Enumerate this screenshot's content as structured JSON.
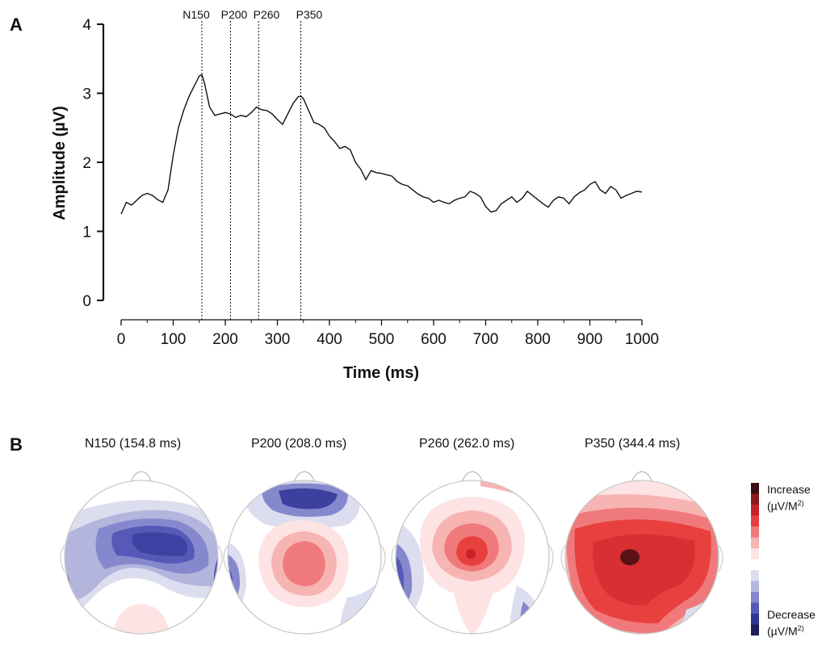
{
  "panels": {
    "a": "A",
    "b": "B"
  },
  "chart_data": {
    "type": "line",
    "xlabel": "Time (ms)",
    "ylabel": "Amplitude (µV)",
    "xlim": [
      0,
      1000
    ],
    "ylim": [
      0,
      4
    ],
    "xticks": [
      0,
      100,
      200,
      300,
      400,
      500,
      600,
      700,
      800,
      900,
      1000
    ],
    "yticks": [
      0,
      1,
      2,
      3,
      4
    ],
    "markers": [
      {
        "label": "N150",
        "x": 155
      },
      {
        "label": "P200",
        "x": 210
      },
      {
        "label": "P260",
        "x": 264
      },
      {
        "label": "P350",
        "x": 345
      }
    ],
    "x": [
      0,
      10,
      20,
      30,
      40,
      50,
      60,
      70,
      80,
      90,
      100,
      110,
      120,
      130,
      140,
      150,
      155,
      160,
      170,
      180,
      190,
      200,
      210,
      220,
      230,
      240,
      250,
      260,
      270,
      280,
      290,
      300,
      310,
      320,
      330,
      340,
      345,
      350,
      360,
      370,
      380,
      390,
      400,
      410,
      420,
      430,
      440,
      450,
      460,
      470,
      480,
      490,
      500,
      510,
      520,
      530,
      540,
      550,
      560,
      570,
      580,
      590,
      600,
      610,
      620,
      630,
      640,
      650,
      660,
      670,
      680,
      690,
      700,
      710,
      720,
      730,
      740,
      750,
      760,
      770,
      780,
      790,
      800,
      810,
      820,
      830,
      840,
      850,
      860,
      870,
      880,
      890,
      900,
      910,
      920,
      930,
      940,
      950,
      960,
      970,
      980,
      990,
      1000
    ],
    "y": [
      1.25,
      1.42,
      1.38,
      1.45,
      1.52,
      1.55,
      1.52,
      1.46,
      1.42,
      1.6,
      2.1,
      2.5,
      2.75,
      2.95,
      3.1,
      3.25,
      3.27,
      3.15,
      2.8,
      2.68,
      2.7,
      2.72,
      2.7,
      2.65,
      2.68,
      2.66,
      2.72,
      2.8,
      2.76,
      2.75,
      2.7,
      2.62,
      2.55,
      2.7,
      2.85,
      2.95,
      2.96,
      2.92,
      2.75,
      2.58,
      2.55,
      2.5,
      2.38,
      2.3,
      2.2,
      2.23,
      2.18,
      2.0,
      1.9,
      1.75,
      1.88,
      1.85,
      1.84,
      1.82,
      1.8,
      1.72,
      1.68,
      1.66,
      1.6,
      1.54,
      1.5,
      1.48,
      1.42,
      1.45,
      1.42,
      1.4,
      1.45,
      1.48,
      1.5,
      1.58,
      1.55,
      1.5,
      1.36,
      1.28,
      1.3,
      1.4,
      1.45,
      1.5,
      1.42,
      1.48,
      1.58,
      1.52,
      1.46,
      1.4,
      1.35,
      1.45,
      1.5,
      1.48,
      1.4,
      1.5,
      1.56,
      1.6,
      1.68,
      1.72,
      1.6,
      1.55,
      1.65,
      1.6,
      1.48,
      1.52,
      1.55,
      1.58,
      1.57
    ],
    "line_color": "#111111"
  },
  "topomaps": [
    {
      "title": "N150 (154.8 ms)"
    },
    {
      "title": "P200 (208.0 ms)"
    },
    {
      "title": "P260 (262.0 ms)"
    },
    {
      "title": "P350 (344.4 ms)"
    }
  ],
  "colorbar": {
    "increase_label": "Increase",
    "decrease_label": "Decrease",
    "unit": "(µV/M",
    "unit_sup": "2)",
    "colors": [
      "#3a0f12",
      "#8b1a1f",
      "#c9202a",
      "#e8403f",
      "#f07a7b",
      "#f6b4b3",
      "#fde3e3",
      "#ffffff",
      "#ddddf0",
      "#b3b5dd",
      "#8588cc",
      "#5659b8",
      "#2f3496",
      "#1c1f5c"
    ]
  }
}
